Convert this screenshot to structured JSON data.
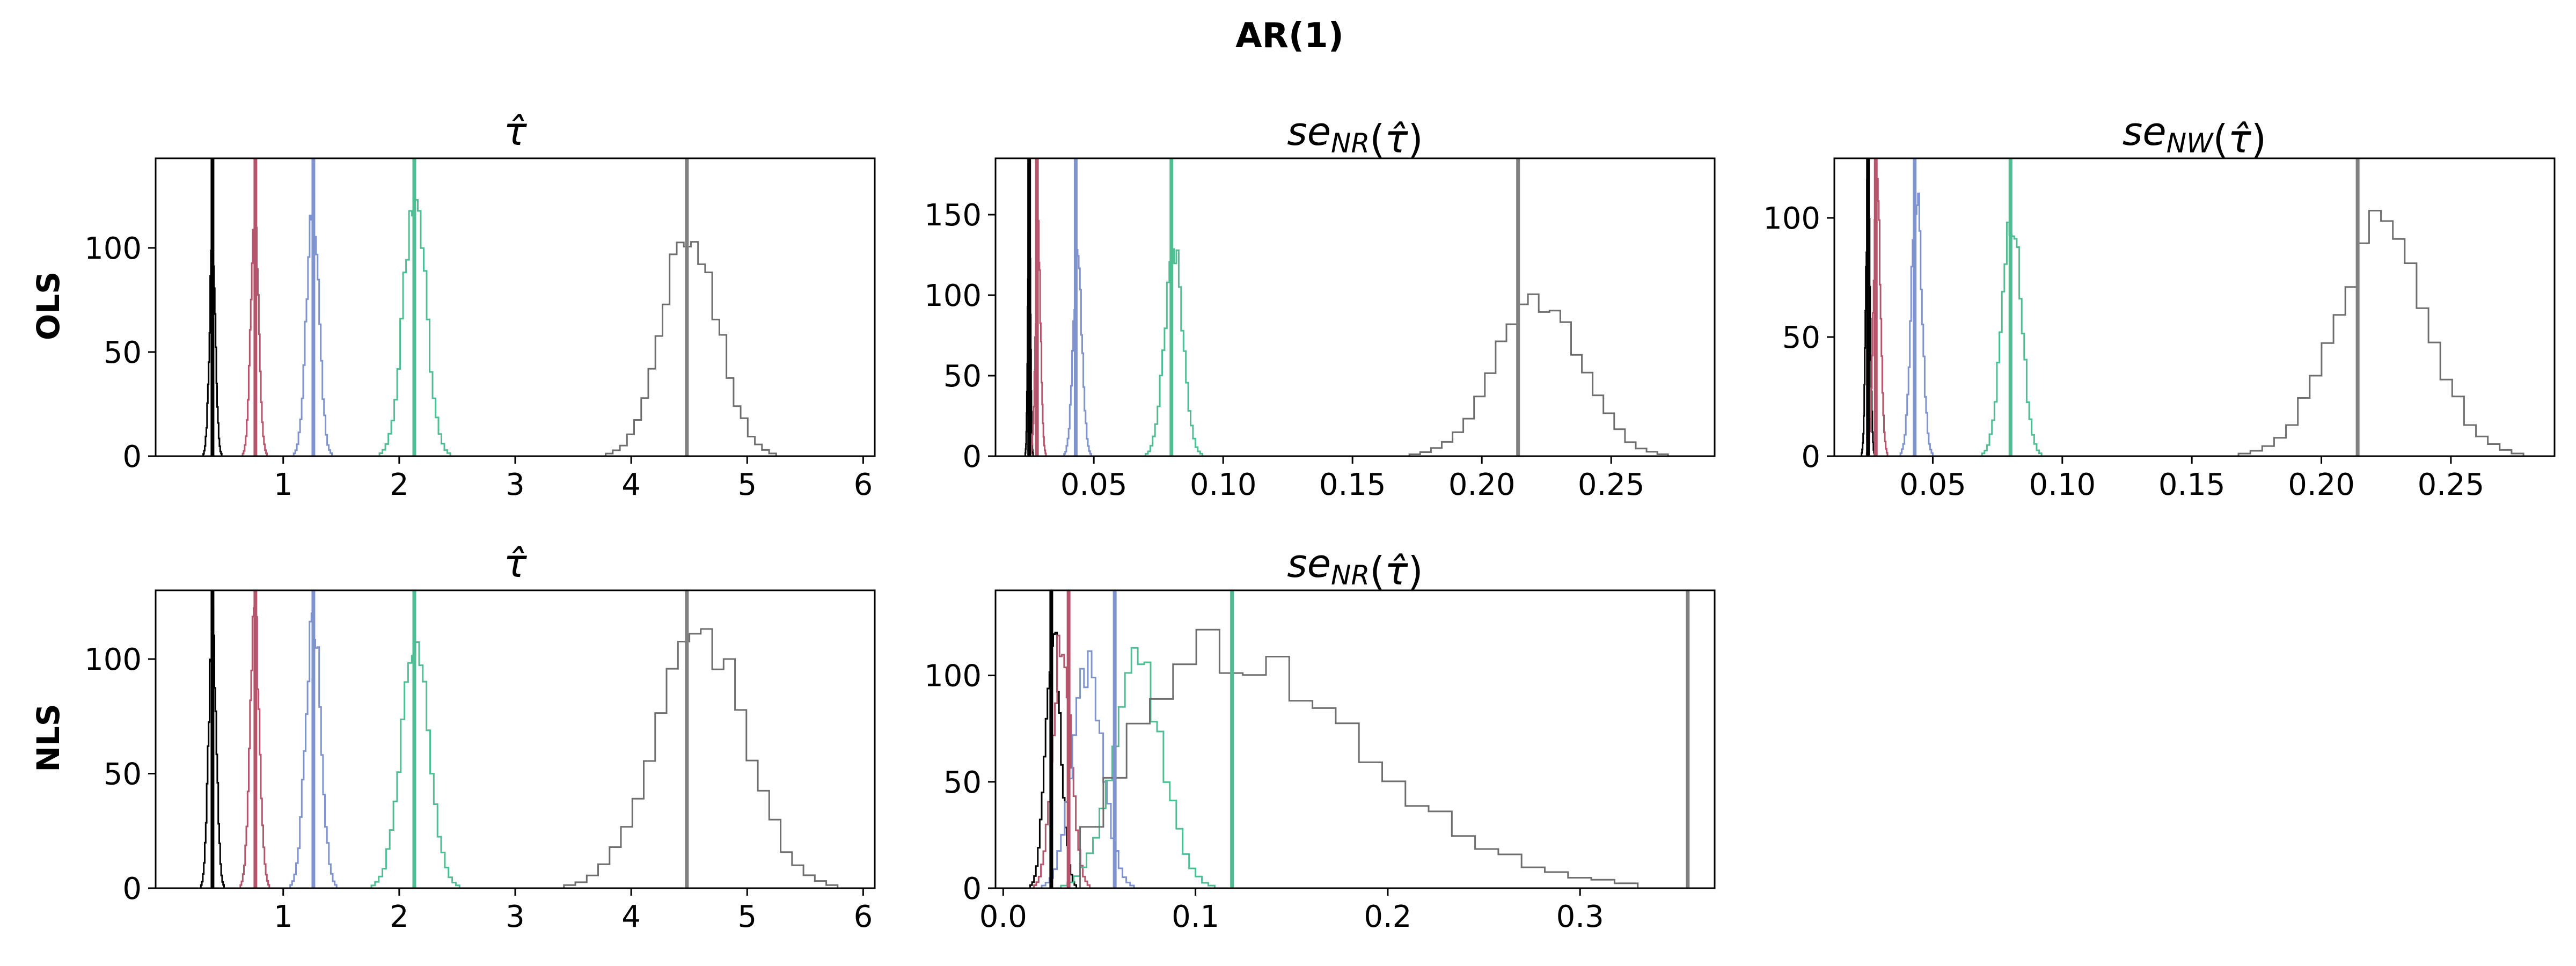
{
  "figure": {
    "suptitle": "AR(1)",
    "row_labels": [
      "OLS",
      "NLS"
    ]
  },
  "colors": {
    "black": "#000000",
    "red": "#b5556b",
    "blue": "#7f93ce",
    "green": "#4fbe92",
    "gray": "#6e6e6e",
    "gray_line": "#808080"
  },
  "chart_data": [
    {
      "type": "histogram",
      "id": "ols_tau",
      "row": 0,
      "col": 0,
      "title": "τ̂",
      "title_parts": [
        {
          "t": "τ̂",
          "italic": true
        }
      ],
      "xlim": [
        -0.1,
        6.1
      ],
      "ylim": [
        0,
        143
      ],
      "xticks": [
        1,
        2,
        3,
        4,
        5,
        6
      ],
      "xtick_labels": [
        "1",
        "2",
        "3",
        "4",
        "5",
        "6"
      ],
      "yticks": [
        0,
        50,
        100
      ],
      "ytick_labels": [
        "0",
        "50",
        "100"
      ],
      "vlines": [
        {
          "x": 0.39,
          "color": "black"
        },
        {
          "x": 0.76,
          "color": "red"
        },
        {
          "x": 1.26,
          "color": "blue"
        },
        {
          "x": 2.13,
          "color": "green"
        },
        {
          "x": 4.48,
          "color": "gray_line"
        }
      ],
      "series": [
        {
          "color": "black",
          "range": [
            0.31,
            0.47
          ],
          "peak": 107
        },
        {
          "color": "red",
          "range": [
            0.65,
            0.86
          ],
          "peak": 120
        },
        {
          "color": "blue",
          "range": [
            1.09,
            1.42
          ],
          "peak": 130
        },
        {
          "color": "green",
          "range": [
            1.83,
            2.44
          ],
          "peak": 135
        },
        {
          "color": "gray",
          "range": [
            3.78,
            5.25
          ],
          "peak": 120
        }
      ]
    },
    {
      "type": "histogram",
      "id": "ols_se_nr",
      "row": 0,
      "col": 1,
      "title": "seNR(τ̂)",
      "title_parts": [
        {
          "t": "se",
          "italic": true
        },
        {
          "t": "NR",
          "italic": true,
          "sub": true
        },
        {
          "t": "(",
          "italic": false
        },
        {
          "t": "τ̂",
          "italic": true
        },
        {
          "t": ")",
          "italic": false
        }
      ],
      "xlim": [
        0.012,
        0.29
      ],
      "ylim": [
        0,
        185
      ],
      "xticks": [
        0.05,
        0.1,
        0.15,
        0.2,
        0.25
      ],
      "xtick_labels": [
        "0.05",
        "0.10",
        "0.15",
        "0.20",
        "0.25"
      ],
      "yticks": [
        0,
        50,
        100,
        150
      ],
      "ytick_labels": [
        "0",
        "50",
        "100",
        "150"
      ],
      "vlines": [
        {
          "x": 0.025,
          "color": "black"
        },
        {
          "x": 0.028,
          "color": "red"
        },
        {
          "x": 0.043,
          "color": "blue"
        },
        {
          "x": 0.08,
          "color": "green"
        },
        {
          "x": 0.214,
          "color": "gray_line"
        }
      ],
      "series": [
        {
          "color": "black",
          "range": [
            0.0235,
            0.0265
          ],
          "peak": 185
        },
        {
          "color": "red",
          "range": [
            0.0255,
            0.0315
          ],
          "peak": 150
        },
        {
          "color": "blue",
          "range": [
            0.0385,
            0.049
          ],
          "peak": 135
        },
        {
          "color": "green",
          "range": [
            0.07,
            0.092
          ],
          "peak": 138
        },
        {
          "color": "gray",
          "range": [
            0.172,
            0.272
          ],
          "peak": 110
        }
      ]
    },
    {
      "type": "histogram",
      "id": "ols_se_nw",
      "row": 0,
      "col": 2,
      "title": "seNW(τ̂)",
      "title_parts": [
        {
          "t": "se",
          "italic": true
        },
        {
          "t": "NW",
          "italic": true,
          "sub": true
        },
        {
          "t": "(",
          "italic": false
        },
        {
          "t": "τ̂",
          "italic": true
        },
        {
          "t": ")",
          "italic": false
        }
      ],
      "xlim": [
        0.012,
        0.29
      ],
      "ylim": [
        0,
        125
      ],
      "xticks": [
        0.05,
        0.1,
        0.15,
        0.2,
        0.25
      ],
      "xtick_labels": [
        "0.05",
        "0.10",
        "0.15",
        "0.20",
        "0.25"
      ],
      "yticks": [
        0,
        50,
        100
      ],
      "ytick_labels": [
        "0",
        "50",
        "100"
      ],
      "vlines": [
        {
          "x": 0.025,
          "color": "black"
        },
        {
          "x": 0.028,
          "color": "red"
        },
        {
          "x": 0.043,
          "color": "blue"
        },
        {
          "x": 0.08,
          "color": "green"
        },
        {
          "x": 0.214,
          "color": "gray_line"
        }
      ],
      "series": [
        {
          "color": "black",
          "range": [
            0.0225,
            0.0275
          ],
          "peak": 125
        },
        {
          "color": "red",
          "range": [
            0.0245,
            0.0325
          ],
          "peak": 125
        },
        {
          "color": "blue",
          "range": [
            0.0375,
            0.05
          ],
          "peak": 120
        },
        {
          "color": "green",
          "range": [
            0.069,
            0.092
          ],
          "peak": 112
        },
        {
          "color": "gray",
          "range": [
            0.168,
            0.278
          ],
          "peak": 104
        }
      ]
    },
    {
      "type": "histogram",
      "id": "nls_tau",
      "row": 1,
      "col": 0,
      "title": "τ̂",
      "title_parts": [
        {
          "t": "τ̂",
          "italic": true
        }
      ],
      "xlim": [
        -0.1,
        6.1
      ],
      "ylim": [
        0,
        130
      ],
      "xticks": [
        1,
        2,
        3,
        4,
        5,
        6
      ],
      "xtick_labels": [
        "1",
        "2",
        "3",
        "4",
        "5",
        "6"
      ],
      "yticks": [
        0,
        50,
        100
      ],
      "ytick_labels": [
        "0",
        "50",
        "100"
      ],
      "vlines": [
        {
          "x": 0.39,
          "color": "black"
        },
        {
          "x": 0.76,
          "color": "red"
        },
        {
          "x": 1.26,
          "color": "blue"
        },
        {
          "x": 2.13,
          "color": "green"
        },
        {
          "x": 4.48,
          "color": "gray_line"
        }
      ],
      "series": [
        {
          "color": "black",
          "range": [
            0.29,
            0.49
          ],
          "peak": 130
        },
        {
          "color": "red",
          "range": [
            0.63,
            0.88
          ],
          "peak": 130
        },
        {
          "color": "blue",
          "range": [
            1.06,
            1.46
          ],
          "peak": 130
        },
        {
          "color": "green",
          "range": [
            1.76,
            2.52
          ],
          "peak": 112
        },
        {
          "color": "gray",
          "range": [
            3.42,
            5.78
          ],
          "peak": 125
        }
      ]
    },
    {
      "type": "histogram",
      "id": "nls_se_nr",
      "row": 1,
      "col": 1,
      "title": "seNR(τ̂)",
      "title_parts": [
        {
          "t": "se",
          "italic": true
        },
        {
          "t": "NR",
          "italic": true,
          "sub": true
        },
        {
          "t": "(",
          "italic": false
        },
        {
          "t": "τ̂",
          "italic": true
        },
        {
          "t": ")",
          "italic": false
        }
      ],
      "xlim": [
        -0.004,
        0.37
      ],
      "ylim": [
        0,
        140
      ],
      "xticks": [
        0.0,
        0.1,
        0.2,
        0.3
      ],
      "xtick_labels": [
        "0.0",
        "0.1",
        "0.2",
        "0.3"
      ],
      "yticks": [
        0,
        50,
        100
      ],
      "ytick_labels": [
        "0",
        "50",
        "100"
      ],
      "vlines": [
        {
          "x": 0.025,
          "color": "black"
        },
        {
          "x": 0.034,
          "color": "red"
        },
        {
          "x": 0.058,
          "color": "blue"
        },
        {
          "x": 0.119,
          "color": "green"
        },
        {
          "x": 0.356,
          "color": "gray_line"
        }
      ],
      "series": [
        {
          "color": "black",
          "range": [
            0.014,
            0.038
          ],
          "peak": 133
        },
        {
          "color": "red",
          "range": [
            0.016,
            0.045
          ],
          "peak": 130
        },
        {
          "color": "blue",
          "range": [
            0.02,
            0.068
          ],
          "peak": 115
        },
        {
          "color": "green",
          "range": [
            0.03,
            0.11
          ],
          "peak": 115
        },
        {
          "color": "gray",
          "range": [
            0.04,
            0.33
          ],
          "peak": 125,
          "skew": true
        }
      ]
    }
  ]
}
